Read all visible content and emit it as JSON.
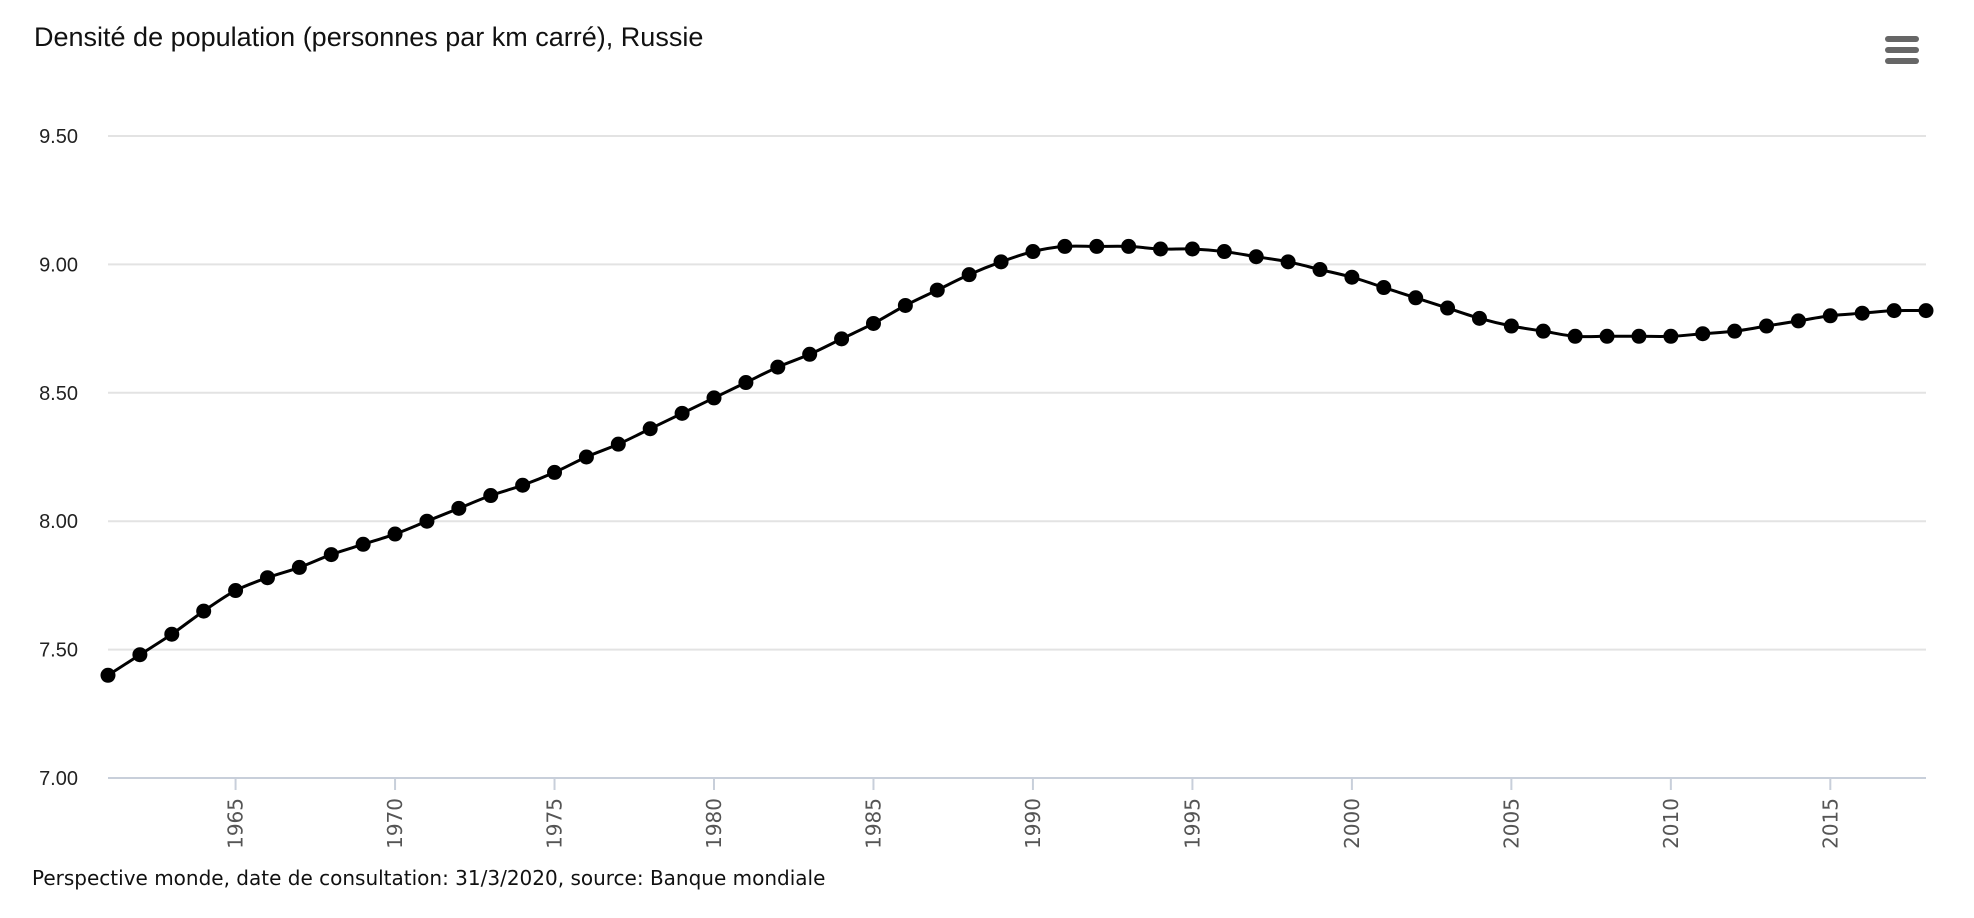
{
  "header": {
    "menu_icon": "hamburger-menu-icon"
  },
  "footer": {
    "credits": "Perspective monde, date de consultation: 31/3/2020, source: Banque mondiale"
  },
  "chart_data": {
    "type": "line",
    "title": "Densité de population (personnes par km carré), Russie",
    "xlabel": "",
    "ylabel": "",
    "ylim": [
      7.0,
      9.5
    ],
    "xlim": [
      1961,
      2018
    ],
    "grid": true,
    "legend": "none",
    "line_color": "#000000",
    "y_ticks": [
      "7.00",
      "7.50",
      "8.00",
      "8.50",
      "9.00",
      "9.50"
    ],
    "x_ticks": [
      "1965",
      "1970",
      "1975",
      "1980",
      "1985",
      "1990",
      "1995",
      "2000",
      "2005",
      "2010",
      "2015"
    ],
    "x": [
      1961,
      1962,
      1963,
      1964,
      1965,
      1966,
      1967,
      1968,
      1969,
      1970,
      1971,
      1972,
      1973,
      1974,
      1975,
      1976,
      1977,
      1978,
      1979,
      1980,
      1981,
      1982,
      1983,
      1984,
      1985,
      1986,
      1987,
      1988,
      1989,
      1990,
      1991,
      1992,
      1993,
      1994,
      1995,
      1996,
      1997,
      1998,
      1999,
      2000,
      2001,
      2002,
      2003,
      2004,
      2005,
      2006,
      2007,
      2008,
      2009,
      2010,
      2011,
      2012,
      2013,
      2014,
      2015,
      2016,
      2017,
      2018
    ],
    "values": [
      7.4,
      7.48,
      7.56,
      7.65,
      7.73,
      7.78,
      7.82,
      7.87,
      7.91,
      7.95,
      8.0,
      8.05,
      8.1,
      8.14,
      8.19,
      8.25,
      8.3,
      8.36,
      8.42,
      8.48,
      8.54,
      8.6,
      8.65,
      8.71,
      8.77,
      8.84,
      8.9,
      8.96,
      9.01,
      9.05,
      9.07,
      9.07,
      9.07,
      9.06,
      9.06,
      9.05,
      9.03,
      9.01,
      8.98,
      8.95,
      8.91,
      8.87,
      8.83,
      8.79,
      8.76,
      8.74,
      8.72,
      8.72,
      8.72,
      8.72,
      8.73,
      8.74,
      8.76,
      8.78,
      8.8,
      8.81,
      8.82,
      8.82
    ]
  }
}
